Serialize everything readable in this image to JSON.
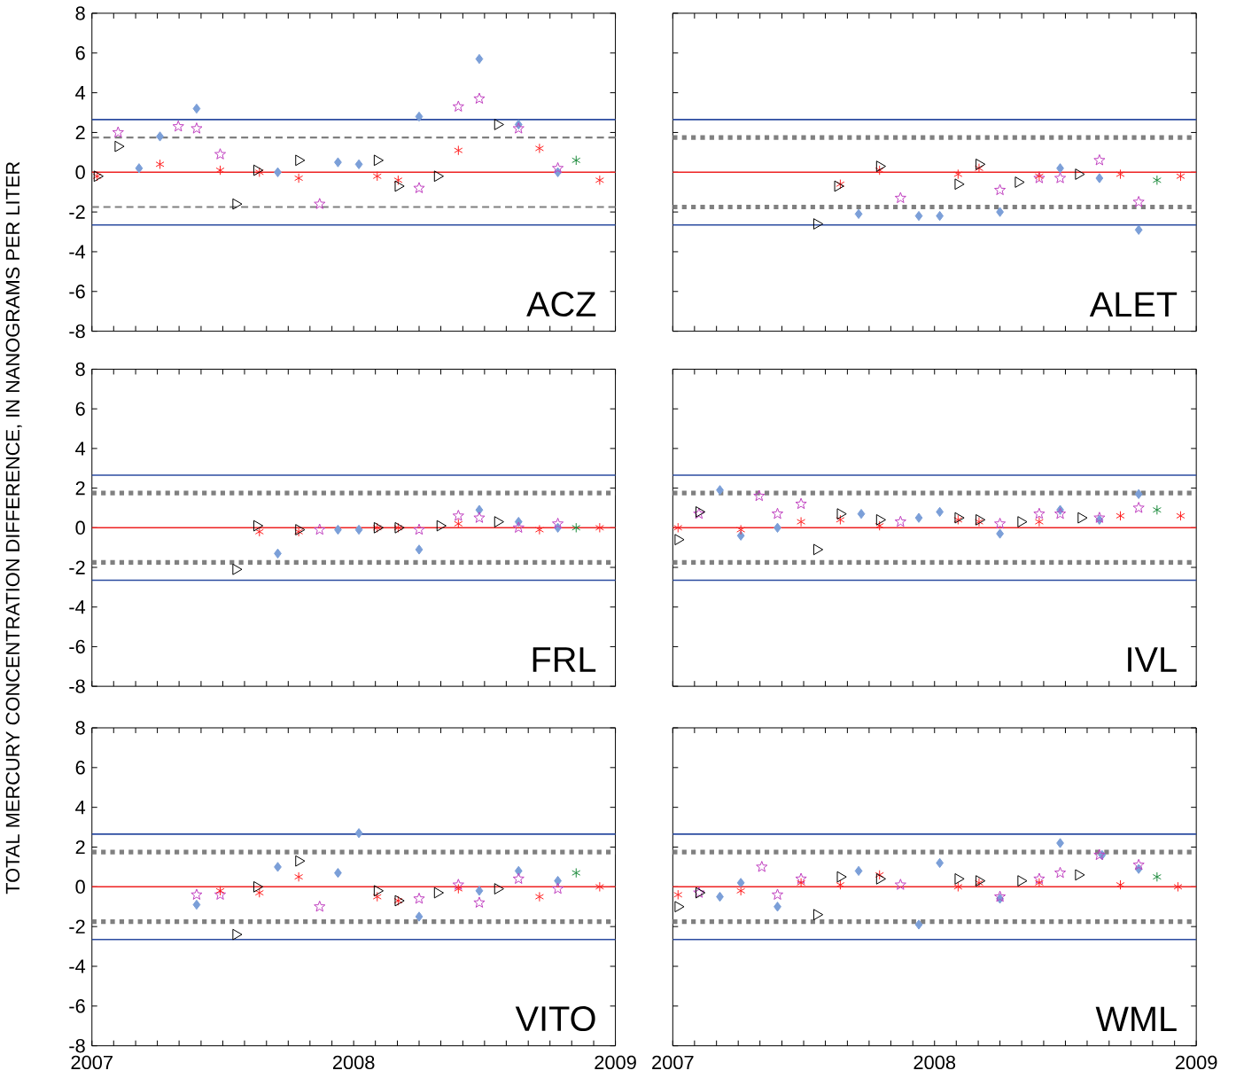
{
  "chart_data": [
    {
      "type": "scatter",
      "annotations": [
        "ACZ"
      ],
      "xlim": [
        2007,
        2009
      ],
      "ylim": [
        -8,
        8
      ],
      "xticks": [
        2007,
        {
          "value": 2007.083,
          "label": null
        },
        {
          "value": 2007.167,
          "label": null
        },
        {
          "value": 2007.25,
          "label": null
        },
        {
          "value": 2007.333,
          "label": null
        },
        {
          "value": 2007.417,
          "label": null
        },
        {
          "value": 2007.5,
          "label": null
        },
        {
          "value": 2007.583,
          "label": null
        },
        {
          "value": 2007.667,
          "label": null
        },
        {
          "value": 2007.75,
          "label": null
        },
        {
          "value": 2007.833,
          "label": null
        },
        {
          "value": 2007.917,
          "label": null
        },
        2008,
        {
          "value": 2008.083,
          "label": null
        },
        {
          "value": 2008.167,
          "label": null
        },
        {
          "value": 2008.25,
          "label": null
        },
        {
          "value": 2008.333,
          "label": null
        },
        {
          "value": 2008.417,
          "label": null
        },
        {
          "value": 2008.5,
          "label": null
        },
        {
          "value": 2008.583,
          "label": null
        },
        {
          "value": 2008.667,
          "label": null
        },
        {
          "value": 2008.75,
          "label": null
        },
        {
          "value": 2008.833,
          "label": null
        },
        {
          "value": 2008.917,
          "label": null
        },
        2009
      ],
      "yticks": [
        -8,
        -6,
        -4,
        -2,
        0,
        2,
        4,
        6,
        8
      ],
      "tick_labels": "y",
      "ref_lines": [
        {
          "axis": "y",
          "value": 0,
          "color": "#ee2222",
          "line_style": "solid"
        },
        {
          "axis": "y",
          "value": 2.65,
          "color": "#2b4ba0",
          "line_style": "solid"
        },
        {
          "axis": "y",
          "value": -2.65,
          "color": "#2b4ba0",
          "line_style": "solid"
        },
        {
          "axis": "y",
          "value": 1.75,
          "color": "#808080",
          "line_style": "dashed"
        },
        {
          "axis": "y",
          "value": -1.75,
          "color": "#808080",
          "line_style": "dashed"
        }
      ],
      "series": [
        {
          "color": "#7b9fd8",
          "marker": "diamond",
          "x": [
            2007.18,
            2007.26,
            2007.4,
            2007.71,
            2007.94,
            2008.02,
            2008.25,
            2008.48,
            2008.63,
            2008.78
          ],
          "values": [
            0.2,
            1.8,
            3.2,
            0,
            0.5,
            0.4,
            2.8,
            5.7,
            2.4,
            0
          ]
        },
        {
          "color": "#c040c0",
          "marker": "star",
          "x": [
            2007.1,
            2007.33,
            2007.4,
            2007.49,
            2007.87,
            2008.25,
            2008.4,
            2008.48,
            2008.63,
            2008.78
          ],
          "values": [
            2.0,
            2.3,
            2.2,
            0.9,
            -1.6,
            -0.8,
            3.3,
            3.7,
            2.2,
            0.2
          ]
        },
        {
          "color": "#ff2020",
          "marker": "cross",
          "x": [
            2007.02,
            2007.26,
            2007.49,
            2007.64,
            2007.79,
            2008.09,
            2008.17,
            2008.4,
            2008.71,
            2008.94
          ],
          "values": [
            -0.2,
            0.4,
            0.1,
            0,
            -0.3,
            -0.2,
            -0.4,
            1.1,
            1.2,
            -0.4
          ]
        },
        {
          "color": "#000000",
          "marker": "triangle",
          "x": [
            2007.02,
            2007.1,
            2007.55,
            2007.63,
            2007.79,
            2008.09,
            2008.17,
            2008.32,
            2008.55
          ],
          "values": [
            -0.2,
            1.3,
            -1.6,
            0.1,
            0.6,
            0.6,
            -0.7,
            -0.2,
            2.4
          ]
        },
        {
          "color": "#1a8a3a",
          "marker": "cross",
          "x": [
            2008.85
          ],
          "values": [
            0.6
          ]
        }
      ]
    },
    {
      "type": "scatter",
      "annotations": [
        "ALET"
      ],
      "xlim": [
        2007,
        2009
      ],
      "ylim": [
        -8,
        8
      ],
      "xticks": [
        2007,
        {
          "value": 2007.083,
          "label": null
        },
        {
          "value": 2007.167,
          "label": null
        },
        {
          "value": 2007.25,
          "label": null
        },
        {
          "value": 2007.333,
          "label": null
        },
        {
          "value": 2007.417,
          "label": null
        },
        {
          "value": 2007.5,
          "label": null
        },
        {
          "value": 2007.583,
          "label": null
        },
        {
          "value": 2007.667,
          "label": null
        },
        {
          "value": 2007.75,
          "label": null
        },
        {
          "value": 2007.833,
          "label": null
        },
        {
          "value": 2007.917,
          "label": null
        },
        2008,
        {
          "value": 2008.083,
          "label": null
        },
        {
          "value": 2008.167,
          "label": null
        },
        {
          "value": 2008.25,
          "label": null
        },
        {
          "value": 2008.333,
          "label": null
        },
        {
          "value": 2008.417,
          "label": null
        },
        {
          "value": 2008.5,
          "label": null
        },
        {
          "value": 2008.583,
          "label": null
        },
        {
          "value": 2008.667,
          "label": null
        },
        {
          "value": 2008.75,
          "label": null
        },
        {
          "value": 2008.833,
          "label": null
        },
        {
          "value": 2008.917,
          "label": null
        },
        2009
      ],
      "yticks": [
        -8,
        -6,
        -4,
        -2,
        0,
        2,
        4,
        6,
        8
      ],
      "tick_labels": false,
      "ref_lines": [
        {
          "axis": "y",
          "value": 0,
          "color": "#ee2222",
          "line_style": "solid"
        },
        {
          "axis": "y",
          "value": 2.65,
          "color": "#2b4ba0",
          "line_style": "solid"
        },
        {
          "axis": "y",
          "value": -2.65,
          "color": "#2b4ba0",
          "line_style": "solid"
        },
        {
          "axis": "y",
          "value": 1.75,
          "color": "#808080",
          "line_style": "dotted"
        },
        {
          "axis": "y",
          "value": -1.75,
          "color": "#808080",
          "line_style": "dotted"
        }
      ],
      "series": [
        {
          "color": "#7b9fd8",
          "marker": "diamond",
          "x": [
            2007.71,
            2007.94,
            2008.02,
            2008.25,
            2008.48,
            2008.63,
            2008.78
          ],
          "values": [
            -2.1,
            -2.2,
            -2.2,
            -2.0,
            0.2,
            -0.3,
            -2.9
          ]
        },
        {
          "color": "#c040c0",
          "marker": "star",
          "x": [
            2007.87,
            2008.25,
            2008.4,
            2008.48,
            2008.63,
            2008.78
          ],
          "values": [
            -1.3,
            -0.9,
            -0.3,
            -0.3,
            0.6,
            -1.5
          ]
        },
        {
          "color": "#ff2020",
          "marker": "cross",
          "x": [
            2007.64,
            2007.79,
            2008.09,
            2008.17,
            2008.4,
            2008.71,
            2008.94
          ],
          "values": [
            -0.6,
            0.1,
            -0.1,
            0.2,
            -0.2,
            -0.1,
            -0.2
          ]
        },
        {
          "color": "#000000",
          "marker": "triangle",
          "x": [
            2007.55,
            2007.63,
            2007.79,
            2008.09,
            2008.17,
            2008.32,
            2008.55
          ],
          "values": [
            -2.6,
            -0.7,
            0.3,
            -0.6,
            0.4,
            -0.5,
            -0.1
          ]
        },
        {
          "color": "#1a8a3a",
          "marker": "cross",
          "x": [
            2008.85
          ],
          "values": [
            -0.4
          ]
        }
      ]
    },
    {
      "type": "scatter",
      "annotations": [
        "FRL"
      ],
      "ylabel": "TOTAL MERCURY CONCENTRATION DIFFERENCE, IN NANOGRAMS PER LITER",
      "xlim": [
        2007,
        2009
      ],
      "ylim": [
        -8,
        8
      ],
      "xticks": [
        2007,
        {
          "value": 2007.083,
          "label": null
        },
        {
          "value": 2007.167,
          "label": null
        },
        {
          "value": 2007.25,
          "label": null
        },
        {
          "value": 2007.333,
          "label": null
        },
        {
          "value": 2007.417,
          "label": null
        },
        {
          "value": 2007.5,
          "label": null
        },
        {
          "value": 2007.583,
          "label": null
        },
        {
          "value": 2007.667,
          "label": null
        },
        {
          "value": 2007.75,
          "label": null
        },
        {
          "value": 2007.833,
          "label": null
        },
        {
          "value": 2007.917,
          "label": null
        },
        2008,
        {
          "value": 2008.083,
          "label": null
        },
        {
          "value": 2008.167,
          "label": null
        },
        {
          "value": 2008.25,
          "label": null
        },
        {
          "value": 2008.333,
          "label": null
        },
        {
          "value": 2008.417,
          "label": null
        },
        {
          "value": 2008.5,
          "label": null
        },
        {
          "value": 2008.583,
          "label": null
        },
        {
          "value": 2008.667,
          "label": null
        },
        {
          "value": 2008.75,
          "label": null
        },
        {
          "value": 2008.833,
          "label": null
        },
        {
          "value": 2008.917,
          "label": null
        },
        2009
      ],
      "yticks": [
        -8,
        -6,
        -4,
        -2,
        0,
        2,
        4,
        6,
        8
      ],
      "tick_labels": "y",
      "ref_lines": [
        {
          "axis": "y",
          "value": 0,
          "color": "#ee2222",
          "line_style": "solid"
        },
        {
          "axis": "y",
          "value": 2.65,
          "color": "#2b4ba0",
          "line_style": "solid"
        },
        {
          "axis": "y",
          "value": -2.65,
          "color": "#2b4ba0",
          "line_style": "solid"
        },
        {
          "axis": "y",
          "value": 1.75,
          "color": "#808080",
          "line_style": "dotted"
        },
        {
          "axis": "y",
          "value": -1.75,
          "color": "#808080",
          "line_style": "dotted"
        }
      ],
      "series": [
        {
          "color": "#7b9fd8",
          "marker": "diamond",
          "x": [
            2007.71,
            2007.94,
            2008.02,
            2008.25,
            2008.48,
            2008.63,
            2008.78
          ],
          "values": [
            -1.3,
            -0.1,
            -0.1,
            -1.1,
            0.9,
            0.3,
            0
          ]
        },
        {
          "color": "#c040c0",
          "marker": "star",
          "x": [
            2007.87,
            2008.25,
            2008.4,
            2008.48,
            2008.63,
            2008.78
          ],
          "values": [
            -0.1,
            -0.1,
            0.6,
            0.5,
            0,
            0.2
          ]
        },
        {
          "color": "#ff2020",
          "marker": "cross",
          "x": [
            2007.64,
            2007.79,
            2008.09,
            2008.17,
            2008.4,
            2008.71,
            2008.94
          ],
          "values": [
            -0.2,
            -0.2,
            0,
            0,
            0.2,
            -0.1,
            0
          ]
        },
        {
          "color": "#000000",
          "marker": "triangle",
          "x": [
            2007.55,
            2007.63,
            2007.79,
            2008.09,
            2008.17,
            2008.33,
            2008.55
          ],
          "values": [
            -2.1,
            0.1,
            -0.1,
            0,
            0,
            0.1,
            0.3
          ]
        },
        {
          "color": "#1a8a3a",
          "marker": "cross",
          "x": [
            2008.85
          ],
          "values": [
            0
          ]
        }
      ]
    },
    {
      "type": "scatter",
      "annotations": [
        "IVL"
      ],
      "xlim": [
        2007,
        2009
      ],
      "ylim": [
        -8,
        8
      ],
      "xticks": [
        2007,
        {
          "value": 2007.083,
          "label": null
        },
        {
          "value": 2007.167,
          "label": null
        },
        {
          "value": 2007.25,
          "label": null
        },
        {
          "value": 2007.333,
          "label": null
        },
        {
          "value": 2007.417,
          "label": null
        },
        {
          "value": 2007.5,
          "label": null
        },
        {
          "value": 2007.583,
          "label": null
        },
        {
          "value": 2007.667,
          "label": null
        },
        {
          "value": 2007.75,
          "label": null
        },
        {
          "value": 2007.833,
          "label": null
        },
        {
          "value": 2007.917,
          "label": null
        },
        2008,
        {
          "value": 2008.083,
          "label": null
        },
        {
          "value": 2008.167,
          "label": null
        },
        {
          "value": 2008.25,
          "label": null
        },
        {
          "value": 2008.333,
          "label": null
        },
        {
          "value": 2008.417,
          "label": null
        },
        {
          "value": 2008.5,
          "label": null
        },
        {
          "value": 2008.583,
          "label": null
        },
        {
          "value": 2008.667,
          "label": null
        },
        {
          "value": 2008.75,
          "label": null
        },
        {
          "value": 2008.833,
          "label": null
        },
        {
          "value": 2008.917,
          "label": null
        },
        2009
      ],
      "yticks": [
        -8,
        -6,
        -4,
        -2,
        0,
        2,
        4,
        6,
        8
      ],
      "tick_labels": false,
      "ref_lines": [
        {
          "axis": "y",
          "value": 0,
          "color": "#ee2222",
          "line_style": "solid"
        },
        {
          "axis": "y",
          "value": 2.65,
          "color": "#2b4ba0",
          "line_style": "solid"
        },
        {
          "axis": "y",
          "value": -2.65,
          "color": "#2b4ba0",
          "line_style": "solid"
        },
        {
          "axis": "y",
          "value": 1.75,
          "color": "#808080",
          "line_style": "dotted"
        },
        {
          "axis": "y",
          "value": -1.75,
          "color": "#808080",
          "line_style": "dotted"
        }
      ],
      "series": [
        {
          "color": "#7b9fd8",
          "marker": "diamond",
          "x": [
            2007.18,
            2007.26,
            2007.4,
            2007.72,
            2007.94,
            2008.02,
            2008.25,
            2008.48,
            2008.63,
            2008.78
          ],
          "values": [
            1.9,
            -0.4,
            0,
            0.7,
            0.5,
            0.8,
            -0.3,
            0.9,
            0.4,
            1.7
          ]
        },
        {
          "color": "#c040c0",
          "marker": "star",
          "x": [
            2007.1,
            2007.33,
            2007.4,
            2007.49,
            2007.87,
            2008.25,
            2008.4,
            2008.48,
            2008.63,
            2008.78
          ],
          "values": [
            0.7,
            1.6,
            0.7,
            1.2,
            0.3,
            0.2,
            0.7,
            0.7,
            0.5,
            1.0
          ]
        },
        {
          "color": "#ff2020",
          "marker": "cross",
          "x": [
            2007.02,
            2007.26,
            2007.49,
            2007.64,
            2007.79,
            2008.09,
            2008.17,
            2008.4,
            2008.71,
            2008.94
          ],
          "values": [
            0,
            -0.1,
            0.3,
            0.4,
            0.1,
            0.4,
            0.3,
            0.3,
            0.6,
            0.6
          ]
        },
        {
          "color": "#000000",
          "marker": "triangle",
          "x": [
            2007.02,
            2007.1,
            2007.55,
            2007.64,
            2007.79,
            2008.09,
            2008.17,
            2008.33,
            2008.56
          ],
          "values": [
            -0.6,
            0.8,
            -1.1,
            0.7,
            0.4,
            0.5,
            0.4,
            0.3,
            0.5
          ]
        },
        {
          "color": "#1a8a3a",
          "marker": "cross",
          "x": [
            2008.85
          ],
          "values": [
            0.9
          ]
        }
      ]
    },
    {
      "type": "scatter",
      "annotations": [
        "VITO"
      ],
      "xlim": [
        2007,
        2009
      ],
      "ylim": [
        -8,
        8
      ],
      "xticks": [
        2007,
        {
          "value": 2007.083,
          "label": null
        },
        {
          "value": 2007.167,
          "label": null
        },
        {
          "value": 2007.25,
          "label": null
        },
        {
          "value": 2007.333,
          "label": null
        },
        {
          "value": 2007.417,
          "label": null
        },
        {
          "value": 2007.5,
          "label": null
        },
        {
          "value": 2007.583,
          "label": null
        },
        {
          "value": 2007.667,
          "label": null
        },
        {
          "value": 2007.75,
          "label": null
        },
        {
          "value": 2007.833,
          "label": null
        },
        {
          "value": 2007.917,
          "label": null
        },
        2008,
        {
          "value": 2008.083,
          "label": null
        },
        {
          "value": 2008.167,
          "label": null
        },
        {
          "value": 2008.25,
          "label": null
        },
        {
          "value": 2008.333,
          "label": null
        },
        {
          "value": 2008.417,
          "label": null
        },
        {
          "value": 2008.5,
          "label": null
        },
        {
          "value": 2008.583,
          "label": null
        },
        {
          "value": 2008.667,
          "label": null
        },
        {
          "value": 2008.75,
          "label": null
        },
        {
          "value": 2008.833,
          "label": null
        },
        {
          "value": 2008.917,
          "label": null
        },
        2009
      ],
      "yticks": [
        -8,
        -6,
        -4,
        -2,
        0,
        2,
        4,
        6,
        8
      ],
      "ref_lines": [
        {
          "axis": "y",
          "value": 0,
          "color": "#ee2222",
          "line_style": "solid"
        },
        {
          "axis": "y",
          "value": 2.65,
          "color": "#2b4ba0",
          "line_style": "solid"
        },
        {
          "axis": "y",
          "value": -2.65,
          "color": "#2b4ba0",
          "line_style": "solid"
        },
        {
          "axis": "y",
          "value": 1.75,
          "color": "#808080",
          "line_style": "dotted"
        },
        {
          "axis": "y",
          "value": -1.75,
          "color": "#808080",
          "line_style": "dotted"
        }
      ],
      "series": [
        {
          "color": "#7b9fd8",
          "marker": "diamond",
          "x": [
            2007.4,
            2007.71,
            2007.94,
            2008.02,
            2008.25,
            2008.48,
            2008.63,
            2008.78
          ],
          "values": [
            -0.9,
            1.0,
            0.7,
            2.7,
            -1.5,
            -0.2,
            0.8,
            0.3
          ]
        },
        {
          "color": "#c040c0",
          "marker": "star",
          "x": [
            2007.4,
            2007.49,
            2007.87,
            2008.25,
            2008.4,
            2008.48,
            2008.63,
            2008.78
          ],
          "values": [
            -0.4,
            -0.4,
            -1.0,
            -0.6,
            0.1,
            -0.8,
            0.4,
            -0.1
          ]
        },
        {
          "color": "#ff2020",
          "marker": "cross",
          "x": [
            2007.49,
            2007.64,
            2007.79,
            2008.09,
            2008.17,
            2008.4,
            2008.71,
            2008.94
          ],
          "values": [
            -0.2,
            -0.3,
            0.5,
            -0.5,
            -0.7,
            -0.1,
            -0.5,
            0
          ]
        },
        {
          "color": "#000000",
          "marker": "triangle",
          "x": [
            2007.55,
            2007.63,
            2007.79,
            2008.09,
            2008.17,
            2008.32,
            2008.55
          ],
          "values": [
            -2.4,
            0,
            1.3,
            -0.2,
            -0.7,
            -0.3,
            -0.1
          ]
        },
        {
          "color": "#1a8a3a",
          "marker": "cross",
          "x": [
            2008.85
          ],
          "values": [
            0.7
          ]
        }
      ]
    },
    {
      "type": "scatter",
      "annotations": [
        "WML"
      ],
      "xlim": [
        2007,
        2009
      ],
      "ylim": [
        -8,
        8
      ],
      "xticks": [
        2007,
        {
          "value": 2007.083,
          "label": null
        },
        {
          "value": 2007.167,
          "label": null
        },
        {
          "value": 2007.25,
          "label": null
        },
        {
          "value": 2007.333,
          "label": null
        },
        {
          "value": 2007.417,
          "label": null
        },
        {
          "value": 2007.5,
          "label": null
        },
        {
          "value": 2007.583,
          "label": null
        },
        {
          "value": 2007.667,
          "label": null
        },
        {
          "value": 2007.75,
          "label": null
        },
        {
          "value": 2007.833,
          "label": null
        },
        {
          "value": 2007.917,
          "label": null
        },
        2008,
        {
          "value": 2008.083,
          "label": null
        },
        {
          "value": 2008.167,
          "label": null
        },
        {
          "value": 2008.25,
          "label": null
        },
        {
          "value": 2008.333,
          "label": null
        },
        {
          "value": 2008.417,
          "label": null
        },
        {
          "value": 2008.5,
          "label": null
        },
        {
          "value": 2008.583,
          "label": null
        },
        {
          "value": 2008.667,
          "label": null
        },
        {
          "value": 2008.75,
          "label": null
        },
        {
          "value": 2008.833,
          "label": null
        },
        {
          "value": 2008.917,
          "label": null
        },
        2009
      ],
      "yticks": [
        -8,
        -6,
        -4,
        -2,
        0,
        2,
        4,
        6,
        8
      ],
      "tick_labels": "x",
      "ref_lines": [
        {
          "axis": "y",
          "value": 0,
          "color": "#ee2222",
          "line_style": "solid"
        },
        {
          "axis": "y",
          "value": 2.65,
          "color": "#2b4ba0",
          "line_style": "solid"
        },
        {
          "axis": "y",
          "value": -2.65,
          "color": "#2b4ba0",
          "line_style": "solid"
        },
        {
          "axis": "y",
          "value": 1.75,
          "color": "#808080",
          "line_style": "dotted"
        },
        {
          "axis": "y",
          "value": -1.75,
          "color": "#808080",
          "line_style": "dotted"
        }
      ],
      "series": [
        {
          "color": "#7b9fd8",
          "marker": "diamond",
          "x": [
            2007.18,
            2007.26,
            2007.4,
            2007.71,
            2007.94,
            2008.02,
            2008.25,
            2008.48,
            2008.64,
            2008.78
          ],
          "values": [
            -0.5,
            0.2,
            -1.0,
            0.8,
            -1.9,
            1.2,
            -0.6,
            2.2,
            1.6,
            0.9
          ]
        },
        {
          "color": "#c040c0",
          "marker": "star",
          "x": [
            2007.1,
            2007.34,
            2007.4,
            2007.49,
            2007.87,
            2008.25,
            2008.4,
            2008.48,
            2008.63,
            2008.78
          ],
          "values": [
            -0.3,
            1.0,
            -0.4,
            0.4,
            0.1,
            -0.5,
            0.4,
            0.7,
            1.6,
            1.1
          ]
        },
        {
          "color": "#ff2020",
          "marker": "cross",
          "x": [
            2007.02,
            2007.26,
            2007.49,
            2007.64,
            2007.79,
            2008.09,
            2008.17,
            2008.4,
            2008.71,
            2008.93
          ],
          "values": [
            -0.4,
            -0.2,
            0.2,
            0.1,
            0.6,
            0,
            0.2,
            0.2,
            0.1,
            0
          ]
        },
        {
          "color": "#000000",
          "marker": "triangle",
          "x": [
            2007.02,
            2007.1,
            2007.55,
            2007.64,
            2007.79,
            2008.09,
            2008.17,
            2008.33,
            2008.55
          ],
          "values": [
            -1.0,
            -0.3,
            -1.4,
            0.5,
            0.4,
            0.4,
            0.3,
            0.3,
            0.6
          ]
        },
        {
          "color": "#1a8a3a",
          "marker": "cross",
          "x": [
            2008.85
          ],
          "values": [
            0.5
          ]
        }
      ]
    }
  ]
}
